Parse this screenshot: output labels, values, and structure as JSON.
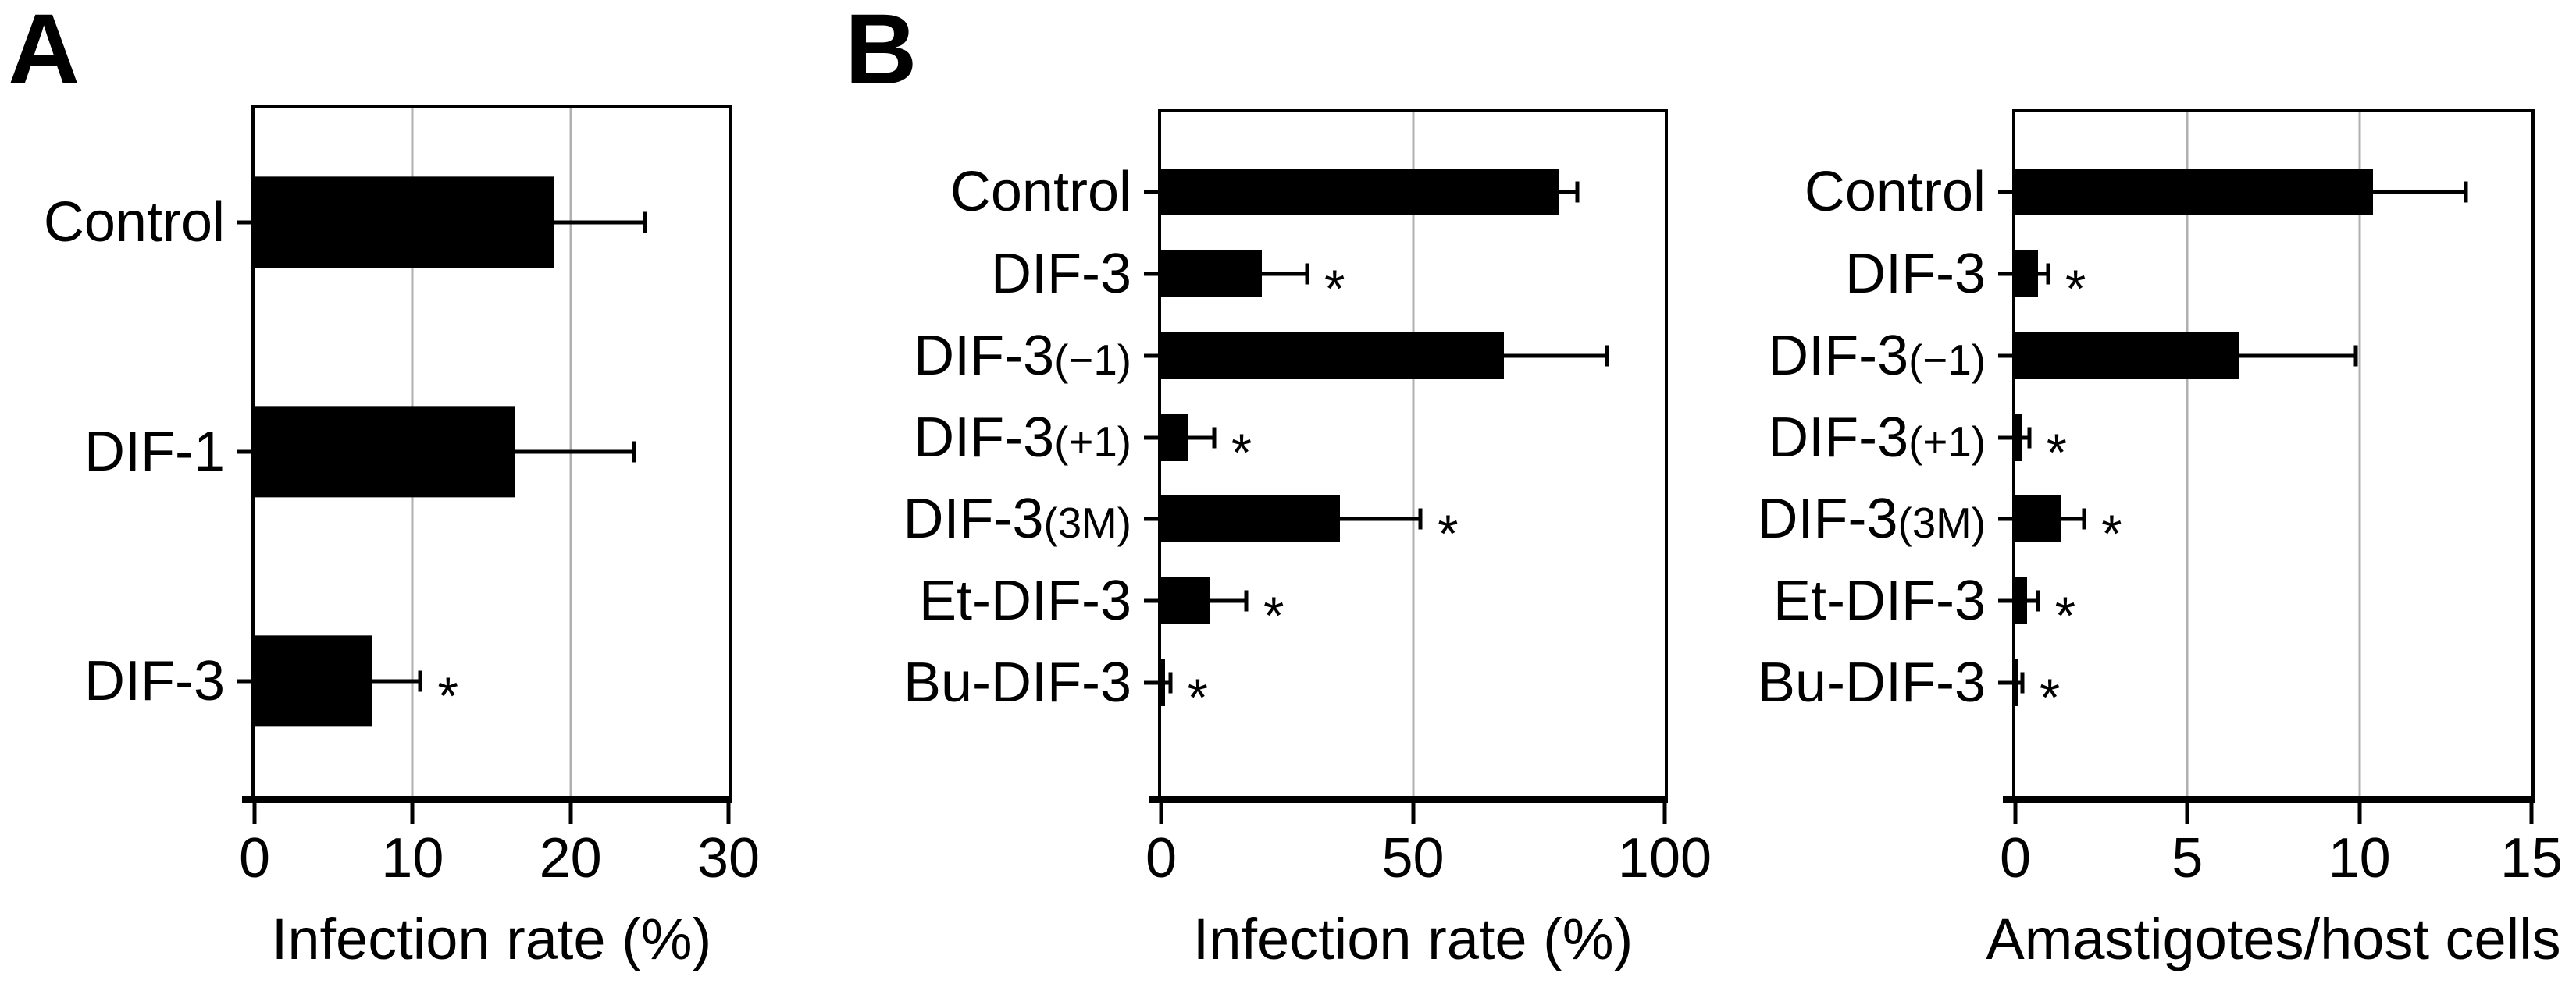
{
  "panels": {
    "a_letter": "A",
    "b_letter": "B"
  },
  "sig_marker": "*",
  "colors": {
    "bar": "#000000",
    "gridline": "#b0b0b0",
    "frame": "#000000"
  },
  "chart_data": [
    {
      "id": "chartA",
      "type": "bar",
      "orientation": "horizontal",
      "panel": "A",
      "xlabel": "Infection rate (%)",
      "xlim": [
        0,
        30
      ],
      "xticks": [
        0,
        10,
        20,
        30
      ],
      "gridlines_x": [
        10,
        20
      ],
      "grid_on": true,
      "categories": [
        "Control",
        "DIF-1",
        "DIF-3"
      ],
      "values": [
        19.0,
        16.5,
        7.4
      ],
      "errors_upper": [
        5.7,
        7.5,
        3.1
      ],
      "significant": [
        false,
        false,
        true
      ]
    },
    {
      "id": "chartB1",
      "type": "bar",
      "orientation": "horizontal",
      "panel": "B",
      "xlabel": "Infection rate (%)",
      "xlim": [
        0,
        100
      ],
      "xticks": [
        0,
        50,
        100
      ],
      "gridlines_x": [
        50
      ],
      "grid_on": true,
      "categories": [
        "Control",
        "DIF-3",
        "DIF-3(−1)",
        "DIF-3(+1)",
        "DIF-3(3M)",
        "Et-DIF-3",
        "Bu-DIF-3"
      ],
      "values": [
        79.0,
        20.0,
        68.0,
        5.3,
        35.5,
        9.8,
        0.8
      ],
      "errors_upper": [
        3.7,
        9.0,
        20.5,
        5.2,
        16.0,
        7.1,
        1.0
      ],
      "significant": [
        false,
        true,
        false,
        true,
        true,
        true,
        true
      ]
    },
    {
      "id": "chartB2",
      "type": "bar",
      "orientation": "horizontal",
      "panel": "B",
      "xlabel": "Amastigotes/host cells",
      "xlim": [
        0,
        15
      ],
      "xticks": [
        0,
        5,
        10,
        15
      ],
      "gridlines_x": [
        5,
        10
      ],
      "grid_on": true,
      "categories": [
        "Control",
        "DIF-3",
        "DIF-3(−1)",
        "DIF-3(+1)",
        "DIF-3(3M)",
        "Et-DIF-3",
        "Bu-DIF-3"
      ],
      "values": [
        10.4,
        0.65,
        6.5,
        0.2,
        1.35,
        0.35,
        0.08
      ],
      "errors_upper": [
        2.7,
        0.3,
        3.4,
        0.2,
        0.65,
        0.3,
        0.12
      ],
      "significant": [
        false,
        true,
        false,
        true,
        true,
        true,
        true
      ]
    }
  ]
}
